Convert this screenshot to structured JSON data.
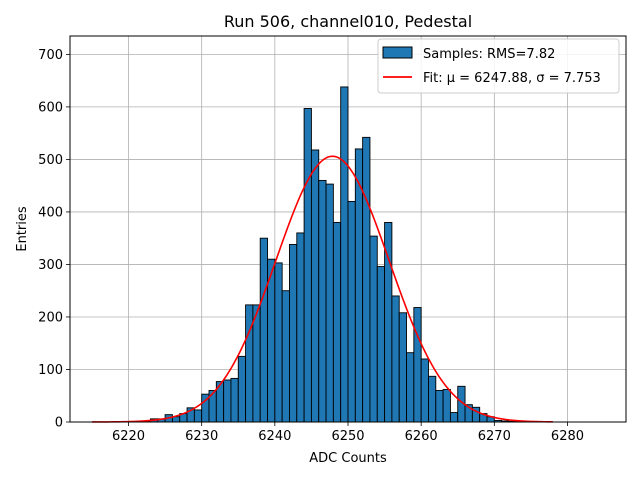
{
  "chart_data": {
    "type": "bar",
    "title": "Run 506, channel010, Pedestal",
    "xlabel": "ADC Counts",
    "ylabel": "Entries",
    "xlim": [
      6212,
      6288
    ],
    "ylim": [
      0,
      735
    ],
    "x_ticks": [
      6220,
      6230,
      6240,
      6250,
      6260,
      6270,
      6280
    ],
    "y_ticks": [
      0,
      100,
      200,
      300,
      400,
      500,
      600,
      700
    ],
    "grid": true,
    "legend_position": "top-right",
    "bin_width": 1,
    "bins": [
      {
        "x": 6220,
        "y": 1
      },
      {
        "x": 6221,
        "y": 1
      },
      {
        "x": 6222,
        "y": 2
      },
      {
        "x": 6223,
        "y": 6
      },
      {
        "x": 6224,
        "y": 6
      },
      {
        "x": 6225,
        "y": 14
      },
      {
        "x": 6226,
        "y": 10
      },
      {
        "x": 6227,
        "y": 16
      },
      {
        "x": 6228,
        "y": 27
      },
      {
        "x": 6229,
        "y": 23
      },
      {
        "x": 6230,
        "y": 53
      },
      {
        "x": 6231,
        "y": 60
      },
      {
        "x": 6232,
        "y": 77
      },
      {
        "x": 6233,
        "y": 80
      },
      {
        "x": 6234,
        "y": 83
      },
      {
        "x": 6235,
        "y": 125
      },
      {
        "x": 6236,
        "y": 223
      },
      {
        "x": 6237,
        "y": 223
      },
      {
        "x": 6238,
        "y": 350
      },
      {
        "x": 6239,
        "y": 310
      },
      {
        "x": 6240,
        "y": 303
      },
      {
        "x": 6241,
        "y": 250
      },
      {
        "x": 6242,
        "y": 338
      },
      {
        "x": 6243,
        "y": 360
      },
      {
        "x": 6244,
        "y": 597
      },
      {
        "x": 6245,
        "y": 518
      },
      {
        "x": 6246,
        "y": 460
      },
      {
        "x": 6247,
        "y": 453
      },
      {
        "x": 6248,
        "y": 380
      },
      {
        "x": 6249,
        "y": 638
      },
      {
        "x": 6250,
        "y": 420
      },
      {
        "x": 6251,
        "y": 520
      },
      {
        "x": 6252,
        "y": 542
      },
      {
        "x": 6253,
        "y": 354
      },
      {
        "x": 6254,
        "y": 296
      },
      {
        "x": 6255,
        "y": 380
      },
      {
        "x": 6256,
        "y": 240
      },
      {
        "x": 6257,
        "y": 208
      },
      {
        "x": 6258,
        "y": 132
      },
      {
        "x": 6259,
        "y": 218
      },
      {
        "x": 6260,
        "y": 120
      },
      {
        "x": 6261,
        "y": 87
      },
      {
        "x": 6262,
        "y": 60
      },
      {
        "x": 6263,
        "y": 62
      },
      {
        "x": 6264,
        "y": 18
      },
      {
        "x": 6265,
        "y": 68
      },
      {
        "x": 6266,
        "y": 33
      },
      {
        "x": 6267,
        "y": 28
      },
      {
        "x": 6268,
        "y": 16
      },
      {
        "x": 6269,
        "y": 10
      },
      {
        "x": 6270,
        "y": 3
      },
      {
        "x": 6271,
        "y": 2
      },
      {
        "x": 6272,
        "y": 1
      }
    ],
    "series": [
      {
        "name": "Samples: RMS=7.82",
        "kind": "histogram",
        "color": "#1f77b4",
        "edge_color": "#000000"
      },
      {
        "name": "Fit: μ = 6247.88, σ = 7.753",
        "kind": "gaussian",
        "color": "#ff0000",
        "mu": 6247.88,
        "sigma": 7.753,
        "peak": 506,
        "x_range": [
          6215,
          6278
        ]
      }
    ]
  }
}
